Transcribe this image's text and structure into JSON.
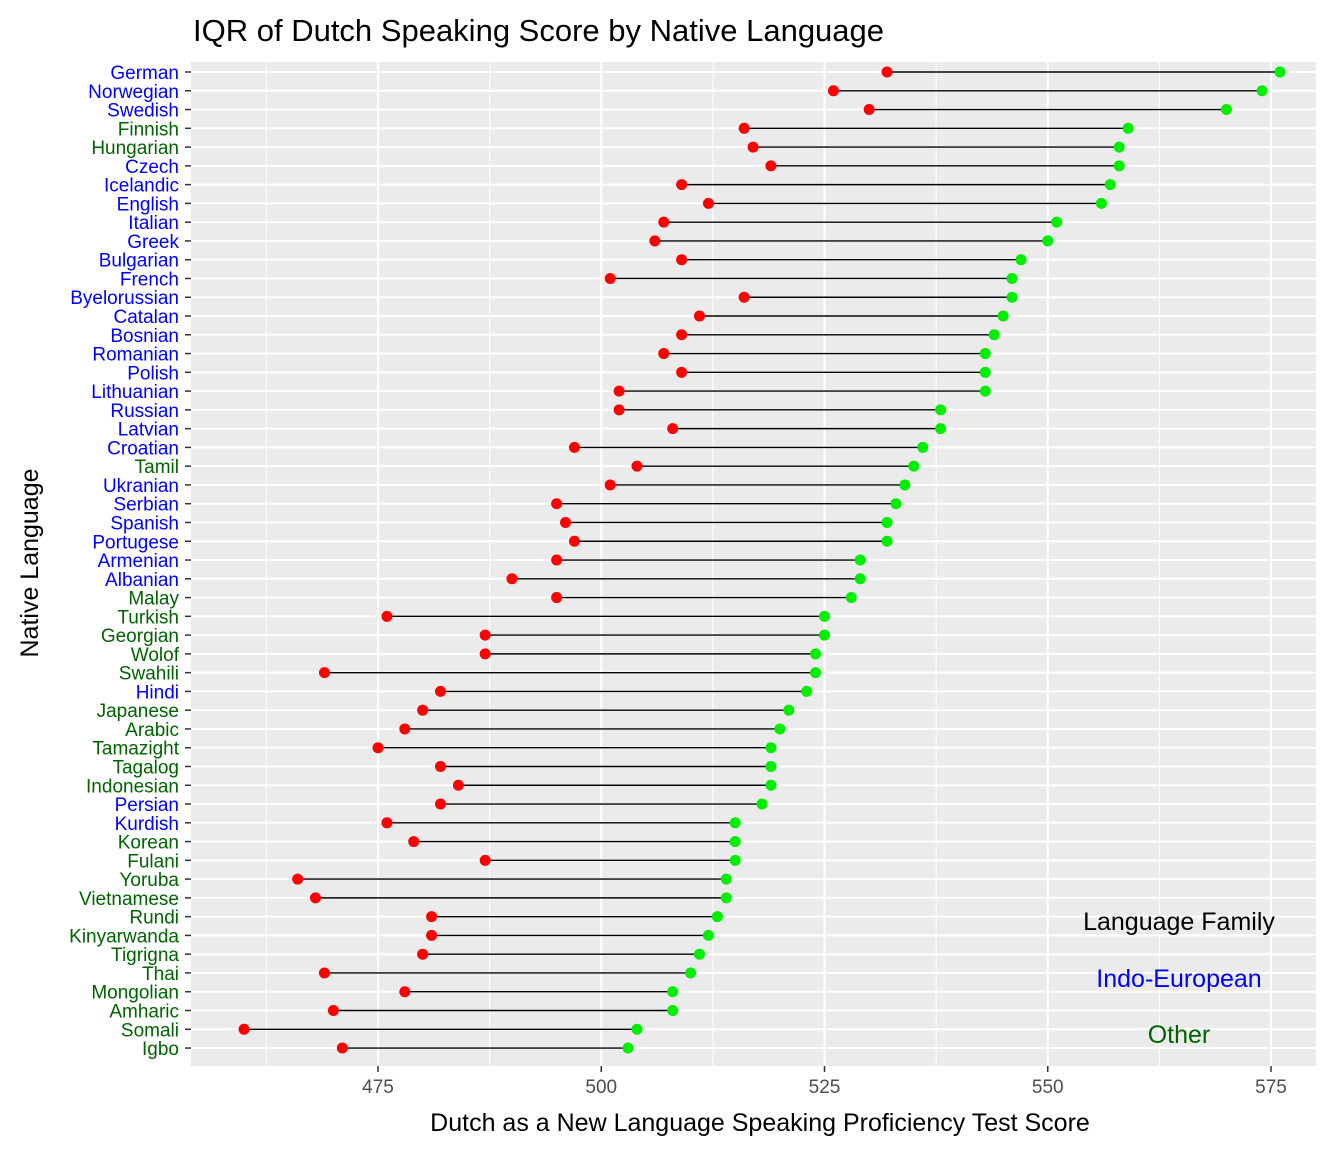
{
  "chart_data": {
    "type": "dumbbell",
    "title": "IQR of Dutch Speaking Score by Native Language",
    "xlabel": "Dutch as a New Language Speaking Proficiency Test Score",
    "ylabel": "Native Language",
    "xlim": [
      458,
      578
    ],
    "x_ticks": [
      475,
      500,
      525,
      550,
      575
    ],
    "grid": true,
    "legend": {
      "position": "bottom-right",
      "title": "Language Family",
      "entries": [
        {
          "label": "Indo-European",
          "color": "#0000ff"
        },
        {
          "label": "Other",
          "color": "#006400"
        }
      ]
    },
    "colors": {
      "q1_point": "#ff0000",
      "q3_point": "#00ee00",
      "segment": "#000000",
      "panel": "#ebebeb",
      "grid": "#ffffff",
      "axis_text": "#4d4d4d",
      "indo_european": "#0000ff",
      "other": "#006400"
    },
    "rows": [
      {
        "language": "German",
        "family": "Indo-European",
        "q1": 532,
        "q3": 576
      },
      {
        "language": "Norwegian",
        "family": "Indo-European",
        "q1": 526,
        "q3": 574
      },
      {
        "language": "Swedish",
        "family": "Indo-European",
        "q1": 530,
        "q3": 570
      },
      {
        "language": "Finnish",
        "family": "Other",
        "q1": 516,
        "q3": 559
      },
      {
        "language": "Hungarian",
        "family": "Other",
        "q1": 517,
        "q3": 558
      },
      {
        "language": "Czech",
        "family": "Indo-European",
        "q1": 519,
        "q3": 558
      },
      {
        "language": "Icelandic",
        "family": "Indo-European",
        "q1": 509,
        "q3": 557
      },
      {
        "language": "English",
        "family": "Indo-European",
        "q1": 512,
        "q3": 556
      },
      {
        "language": "Italian",
        "family": "Indo-European",
        "q1": 507,
        "q3": 551
      },
      {
        "language": "Greek",
        "family": "Indo-European",
        "q1": 506,
        "q3": 550
      },
      {
        "language": "Bulgarian",
        "family": "Indo-European",
        "q1": 509,
        "q3": 547
      },
      {
        "language": "French",
        "family": "Indo-European",
        "q1": 501,
        "q3": 546
      },
      {
        "language": "Byelorussian",
        "family": "Indo-European",
        "q1": 516,
        "q3": 546
      },
      {
        "language": "Catalan",
        "family": "Indo-European",
        "q1": 511,
        "q3": 545
      },
      {
        "language": "Bosnian",
        "family": "Indo-European",
        "q1": 509,
        "q3": 544
      },
      {
        "language": "Romanian",
        "family": "Indo-European",
        "q1": 507,
        "q3": 543
      },
      {
        "language": "Polish",
        "family": "Indo-European",
        "q1": 509,
        "q3": 543
      },
      {
        "language": "Lithuanian",
        "family": "Indo-European",
        "q1": 502,
        "q3": 543
      },
      {
        "language": "Russian",
        "family": "Indo-European",
        "q1": 502,
        "q3": 538
      },
      {
        "language": "Latvian",
        "family": "Indo-European",
        "q1": 508,
        "q3": 538
      },
      {
        "language": "Croatian",
        "family": "Indo-European",
        "q1": 497,
        "q3": 536
      },
      {
        "language": "Tamil",
        "family": "Other",
        "q1": 504,
        "q3": 535
      },
      {
        "language": "Ukranian",
        "family": "Indo-European",
        "q1": 501,
        "q3": 534
      },
      {
        "language": "Serbian",
        "family": "Indo-European",
        "q1": 495,
        "q3": 533
      },
      {
        "language": "Spanish",
        "family": "Indo-European",
        "q1": 496,
        "q3": 532
      },
      {
        "language": "Portugese",
        "family": "Indo-European",
        "q1": 497,
        "q3": 532
      },
      {
        "language": "Armenian",
        "family": "Indo-European",
        "q1": 495,
        "q3": 529
      },
      {
        "language": "Albanian",
        "family": "Indo-European",
        "q1": 490,
        "q3": 529
      },
      {
        "language": "Malay",
        "family": "Other",
        "q1": 495,
        "q3": 528
      },
      {
        "language": "Turkish",
        "family": "Other",
        "q1": 476,
        "q3": 525
      },
      {
        "language": "Georgian",
        "family": "Other",
        "q1": 487,
        "q3": 525
      },
      {
        "language": "Wolof",
        "family": "Other",
        "q1": 487,
        "q3": 524
      },
      {
        "language": "Swahili",
        "family": "Other",
        "q1": 469,
        "q3": 524
      },
      {
        "language": "Hindi",
        "family": "Indo-European",
        "q1": 482,
        "q3": 523
      },
      {
        "language": "Japanese",
        "family": "Other",
        "q1": 480,
        "q3": 521
      },
      {
        "language": "Arabic",
        "family": "Other",
        "q1": 478,
        "q3": 520
      },
      {
        "language": "Tamazight",
        "family": "Other",
        "q1": 475,
        "q3": 519
      },
      {
        "language": "Tagalog",
        "family": "Other",
        "q1": 482,
        "q3": 519
      },
      {
        "language": "Indonesian",
        "family": "Other",
        "q1": 484,
        "q3": 519
      },
      {
        "language": "Persian",
        "family": "Indo-European",
        "q1": 482,
        "q3": 518
      },
      {
        "language": "Kurdish",
        "family": "Indo-European",
        "q1": 476,
        "q3": 515
      },
      {
        "language": "Korean",
        "family": "Other",
        "q1": 479,
        "q3": 515
      },
      {
        "language": "Fulani",
        "family": "Other",
        "q1": 487,
        "q3": 515
      },
      {
        "language": "Yoruba",
        "family": "Other",
        "q1": 466,
        "q3": 514
      },
      {
        "language": "Vietnamese",
        "family": "Other",
        "q1": 468,
        "q3": 514
      },
      {
        "language": "Rundi",
        "family": "Other",
        "q1": 481,
        "q3": 513
      },
      {
        "language": "Kinyarwanda",
        "family": "Other",
        "q1": 481,
        "q3": 512
      },
      {
        "language": "Tigrigna",
        "family": "Other",
        "q1": 480,
        "q3": 511
      },
      {
        "language": "Thai",
        "family": "Other",
        "q1": 469,
        "q3": 510
      },
      {
        "language": "Mongolian",
        "family": "Other",
        "q1": 478,
        "q3": 508
      },
      {
        "language": "Amharic",
        "family": "Other",
        "q1": 470,
        "q3": 508
      },
      {
        "language": "Somali",
        "family": "Other",
        "q1": 460,
        "q3": 504
      },
      {
        "language": "Igbo",
        "family": "Other",
        "q1": 471,
        "q3": 503
      }
    ]
  }
}
